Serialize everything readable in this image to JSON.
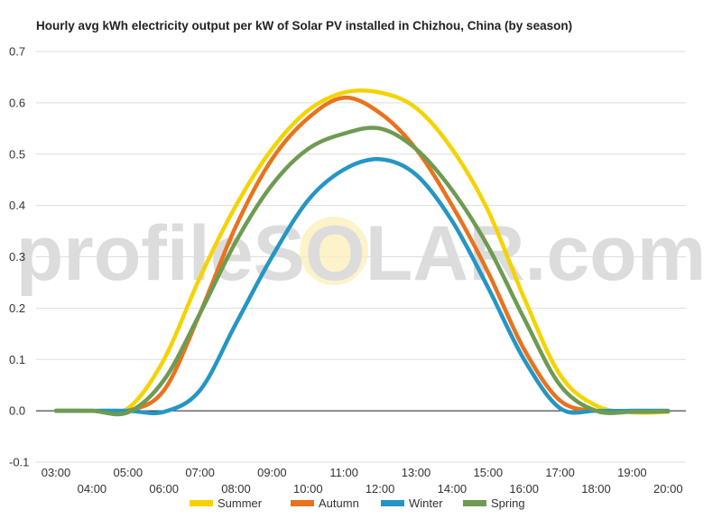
{
  "chart_data": {
    "type": "line",
    "title": "Hourly avg kWh electricity output per kW of Solar PV installed in Chizhou, China (by season)",
    "xlabel": "",
    "ylabel": "",
    "ylim": [
      -0.1,
      0.7
    ],
    "yticks": [
      "-0.1",
      "0.0",
      "0.1",
      "0.2",
      "0.3",
      "0.4",
      "0.5",
      "0.6",
      "0.7"
    ],
    "x": [
      "03:00",
      "04:00",
      "05:00",
      "06:00",
      "07:00",
      "08:00",
      "09:00",
      "10:00",
      "11:00",
      "12:00",
      "13:00",
      "14:00",
      "15:00",
      "16:00",
      "17:00",
      "18:00",
      "19:00",
      "20:00"
    ],
    "grid": true,
    "legend": "bottom",
    "watermark": "profileSOLAR.com",
    "series": [
      {
        "name": "Summer",
        "color": "#F5D300",
        "values": [
          0.0,
          0.0,
          0.005,
          0.1,
          0.26,
          0.4,
          0.51,
          0.585,
          0.62,
          0.62,
          0.59,
          0.51,
          0.39,
          0.22,
          0.07,
          0.01,
          -0.003,
          -0.002
        ]
      },
      {
        "name": "Autumn",
        "color": "#E8731F",
        "values": [
          0.0,
          0.0,
          0.0,
          0.04,
          0.19,
          0.36,
          0.49,
          0.57,
          0.61,
          0.58,
          0.51,
          0.4,
          0.27,
          0.12,
          0.02,
          0.0,
          0.0,
          0.0
        ]
      },
      {
        "name": "Winter",
        "color": "#2596C4",
        "values": [
          0.0,
          0.0,
          0.0,
          -0.002,
          0.04,
          0.17,
          0.3,
          0.41,
          0.47,
          0.49,
          0.46,
          0.37,
          0.24,
          0.1,
          0.005,
          0.0,
          0.0,
          0.0
        ]
      },
      {
        "name": "Spring",
        "color": "#6E9B52",
        "values": [
          0.0,
          0.0,
          -0.003,
          0.06,
          0.19,
          0.33,
          0.44,
          0.51,
          0.54,
          0.55,
          0.51,
          0.43,
          0.32,
          0.18,
          0.05,
          0.0,
          -0.002,
          -0.001
        ]
      }
    ]
  }
}
